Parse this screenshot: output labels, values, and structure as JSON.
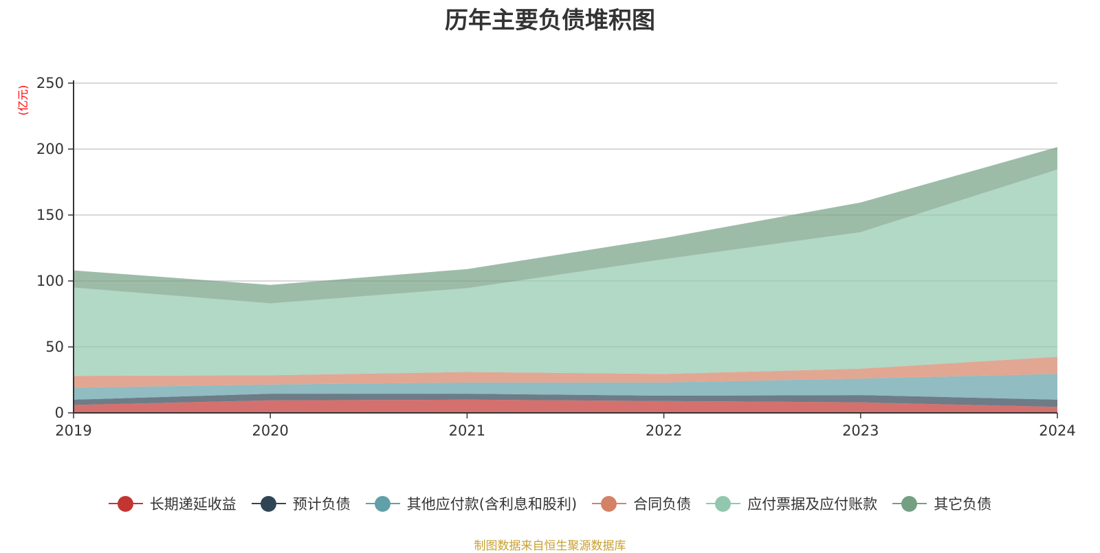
{
  "chart_data": {
    "type": "area",
    "stacked": true,
    "title": "历年主要负债堆积图",
    "unit": "(亿元)",
    "x": [
      "2019",
      "2020",
      "2021",
      "2022",
      "2023",
      "2024"
    ],
    "ylim": [
      0,
      250
    ],
    "yticks": [
      "0",
      "50",
      "100",
      "150",
      "200",
      "250"
    ],
    "grid": true,
    "legend_position": "bottom",
    "series": [
      {
        "name": "长期递延收益",
        "color": "#c23531",
        "values": [
          6,
          9.5,
          10,
          9,
          8,
          4.5
        ]
      },
      {
        "name": "预计负债",
        "color": "#2f4554",
        "values": [
          4,
          5,
          4.5,
          4,
          5.5,
          5.5
        ]
      },
      {
        "name": "其他应付款(含利息和股利)",
        "color": "#61a0a8",
        "values": [
          9,
          7,
          8.5,
          10,
          12.5,
          19.5
        ]
      },
      {
        "name": "合同负债",
        "color": "#d48265",
        "values": [
          9,
          7,
          8,
          6.5,
          7.5,
          13
        ]
      },
      {
        "name": "应付票据及应付账款",
        "color": "#91c7ae",
        "values": [
          67,
          54.5,
          63.5,
          87,
          103.5,
          142
        ]
      },
      {
        "name": "其它负债",
        "color": "#749f83",
        "values": [
          13,
          14,
          14.5,
          16,
          22.5,
          17
        ]
      }
    ],
    "source": "制图数据来自恒生聚源数据库"
  }
}
